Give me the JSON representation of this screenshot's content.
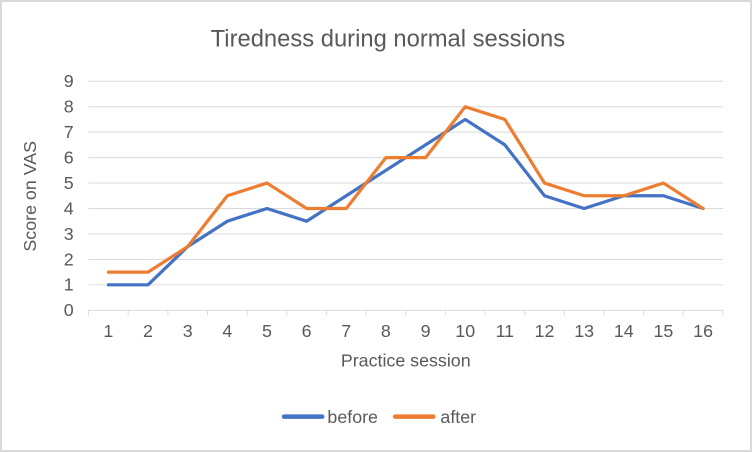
{
  "chart_data": {
    "type": "line",
    "title": "Tiredness during normal sessions",
    "xlabel": "Practice session",
    "ylabel": "Score on VAS",
    "categories": [
      "1",
      "2",
      "3",
      "4",
      "5",
      "6",
      "7",
      "8",
      "9",
      "10",
      "11",
      "12",
      "13",
      "14",
      "15",
      "16"
    ],
    "series": [
      {
        "name": "before",
        "color": "#4472C4",
        "values": [
          1,
          1,
          2.5,
          3.5,
          4,
          3.5,
          4.5,
          5.5,
          6.5,
          7.5,
          6.5,
          4.5,
          4,
          4.5,
          4.5,
          4
        ]
      },
      {
        "name": "after",
        "color": "#ED7D31",
        "values": [
          1.5,
          1.5,
          2.5,
          4.5,
          5,
          4,
          4,
          6,
          6,
          8,
          7.5,
          5,
          4.5,
          4.5,
          5,
          4
        ]
      }
    ],
    "ylim": [
      0,
      9
    ],
    "ytick_step": 1,
    "grid": "horizontal",
    "legend_position": "bottom",
    "colors": {
      "gridline": "#d9d9d9",
      "axis_line": "#d9d9d9",
      "text": "#595959",
      "frame_border": "#d9d9d9",
      "background": "#ffffff"
    }
  }
}
